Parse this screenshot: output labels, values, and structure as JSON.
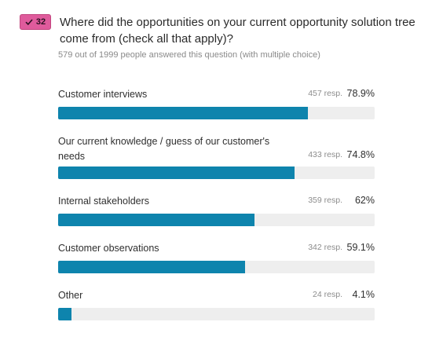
{
  "badge": {
    "count": "32",
    "color": "#df5b9c"
  },
  "question": {
    "text": "Where did the opportunities on your current opportunity solution tree come from (check all that apply)?"
  },
  "summary": "579 out of 1999 people answered this question (with multiple choice)",
  "bar_color": "#0e84ad",
  "options": [
    {
      "label": "Customer interviews",
      "responses": "457 resp.",
      "percent": "78.9%",
      "value": 0.789
    },
    {
      "label": "Our current knowledge / guess of our customer's needs",
      "responses": "433 resp.",
      "percent": "74.8%",
      "value": 0.748
    },
    {
      "label": "Internal stakeholders",
      "responses": "359 resp.",
      "percent": "62%",
      "value": 0.62
    },
    {
      "label": "Customer observations",
      "responses": "342 resp.",
      "percent": "59.1%",
      "value": 0.591
    },
    {
      "label": "Other",
      "responses": "24 resp.",
      "percent": "4.1%",
      "value": 0.041
    }
  ]
}
